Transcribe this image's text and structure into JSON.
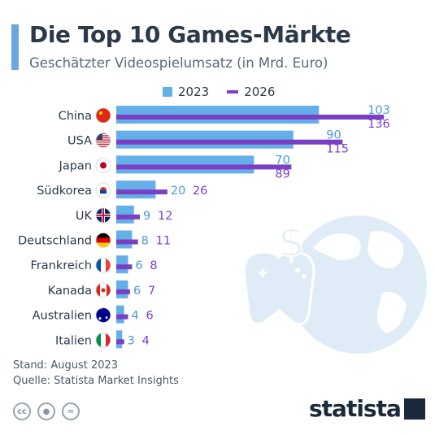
{
  "header": {
    "title": "Die Top 10 Games-Märkte",
    "subtitle": "Geschätzter Videospielumsatz (in Mrd. Euro)"
  },
  "legend": {
    "a": "2023",
    "b": "2026"
  },
  "footer": {
    "stand": "Stand: August 2023",
    "quelle": "Quelle: Statista Market Insights",
    "brand": "statista"
  },
  "colors": {
    "c2023": "#64afe8",
    "c2026": "#7b3fc4",
    "accent": "#6aa8e0"
  },
  "chart_data": {
    "type": "bar",
    "orientation": "horizontal",
    "title": "Die Top 10 Games-Märkte",
    "subtitle": "Geschätzter Videospielumsatz (in Mrd. Euro)",
    "categories": [
      "China",
      "USA",
      "Japan",
      "Südkorea",
      "UK",
      "Deutschland",
      "Frankreich",
      "Kanada",
      "Australien",
      "Italien"
    ],
    "flags": [
      "flag-china-icon",
      "flag-usa-icon",
      "flag-japan-icon",
      "flag-south-korea-icon",
      "flag-uk-icon",
      "flag-germany-icon",
      "flag-france-icon",
      "flag-canada-icon",
      "flag-australia-icon",
      "flag-italy-icon"
    ],
    "series": [
      {
        "name": "2023",
        "values": [
          103,
          90,
          70,
          20,
          9,
          8,
          6,
          6,
          4,
          3
        ]
      },
      {
        "name": "2026",
        "values": [
          136,
          115,
          89,
          26,
          12,
          11,
          8,
          7,
          6,
          4
        ]
      }
    ],
    "xlim": [
      0,
      140
    ],
    "grid": false,
    "legend_position": "top"
  }
}
